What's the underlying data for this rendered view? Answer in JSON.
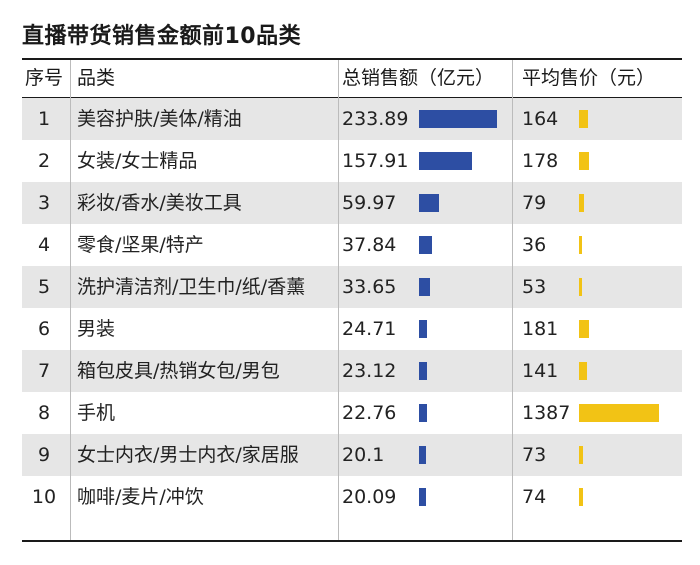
{
  "title": "直播带货销售金额前10品类",
  "colors": {
    "sales_bar": "#2d4ea3",
    "price_bar": "#f2c315",
    "row_shade": "#e6e6e6"
  },
  "headers": {
    "rank": "序号",
    "category": "品类",
    "sales": "总销售额（亿元）",
    "price": "平均售价（元）"
  },
  "chart_data": {
    "type": "table",
    "title": "直播带货销售金额前10品类",
    "columns": [
      "序号",
      "品类",
      "总销售额（亿元）",
      "平均售价（元）"
    ],
    "rows": [
      {
        "rank": "1",
        "category": "美容护肤/美体/精油",
        "sales": "233.89",
        "price": "164"
      },
      {
        "rank": "2",
        "category": "女装/女士精品",
        "sales": "157.91",
        "price": "178"
      },
      {
        "rank": "3",
        "category": "彩妆/香水/美妆工具",
        "sales": "59.97",
        "price": "79"
      },
      {
        "rank": "4",
        "category": "零食/坚果/特产",
        "sales": "37.84",
        "price": "36"
      },
      {
        "rank": "5",
        "category": "洗护清洁剂/卫生巾/纸/香薰",
        "sales": "33.65",
        "price": "53"
      },
      {
        "rank": "6",
        "category": "男装",
        "sales": "24.71",
        "price": "181"
      },
      {
        "rank": "7",
        "category": "箱包皮具/热销女包/男包",
        "sales": "23.12",
        "price": "141"
      },
      {
        "rank": "8",
        "category": "手机",
        "sales": "22.76",
        "price": "1387"
      },
      {
        "rank": "9",
        "category": "女士内衣/男士内衣/家居服",
        "sales": "20.1",
        "price": "73"
      },
      {
        "rank": "10",
        "category": "咖啡/麦片/冲饮",
        "sales": "20.09",
        "price": "74"
      }
    ],
    "sales_max": 233.89,
    "price_max": 1387
  }
}
